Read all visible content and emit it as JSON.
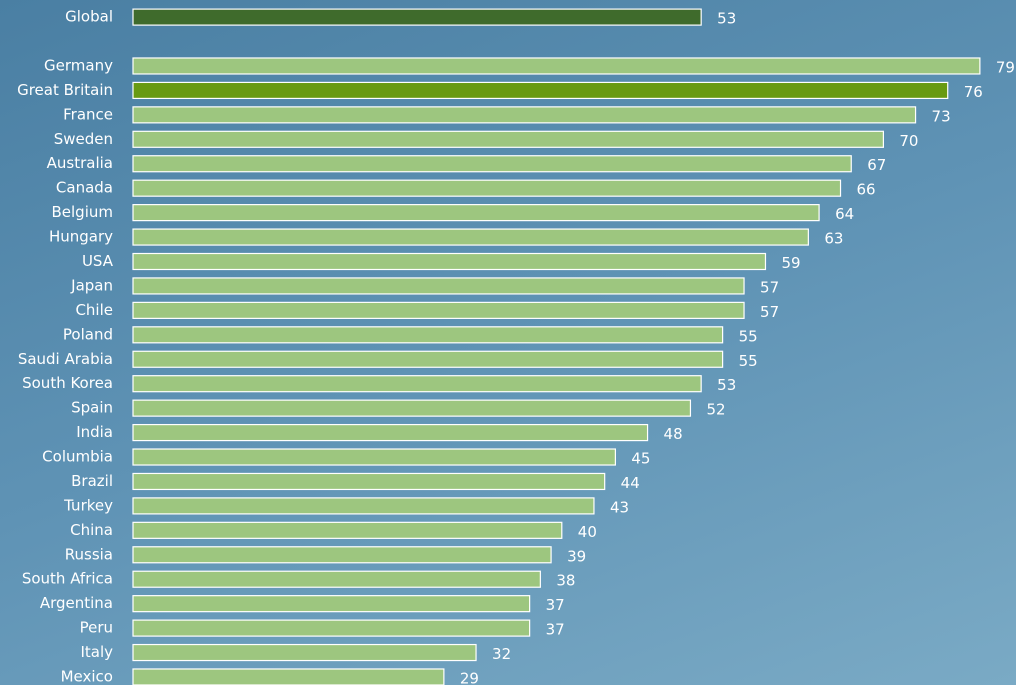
{
  "chart_data": {
    "type": "bar",
    "orientation": "horizontal",
    "categories": [
      "Global",
      null,
      "Germany",
      "Great Britain",
      "France",
      "Sweden",
      "Australia",
      "Canada",
      "Belgium",
      "Hungary",
      "USA",
      "Japan",
      "Chile",
      "Poland",
      "Saudi Arabia",
      "South Korea",
      "Spain",
      "India",
      "Columbia",
      "Brazil",
      "Turkey",
      "China",
      "Russia",
      "South Africa",
      "Argentina",
      "Peru",
      "Italy",
      "Mexico"
    ],
    "values": [
      53,
      null,
      79,
      76,
      73,
      70,
      67,
      66,
      64,
      63,
      59,
      57,
      57,
      55,
      55,
      53,
      52,
      48,
      45,
      44,
      43,
      40,
      39,
      38,
      37,
      37,
      32,
      29
    ],
    "colors": [
      "#3f6b2c",
      null,
      "#9dc67f",
      "#689a12",
      "#9dc67f",
      "#9dc67f",
      "#9dc67f",
      "#9dc67f",
      "#9dc67f",
      "#9dc67f",
      "#9dc67f",
      "#9dc67f",
      "#9dc67f",
      "#9dc67f",
      "#9dc67f",
      "#9dc67f",
      "#9dc67f",
      "#9dc67f",
      "#9dc67f",
      "#9dc67f",
      "#9dc67f",
      "#9dc67f",
      "#9dc67f",
      "#9dc67f",
      "#9dc67f",
      "#9dc67f",
      "#9dc67f",
      "#9dc67f"
    ],
    "xlim": [
      0,
      80
    ]
  }
}
